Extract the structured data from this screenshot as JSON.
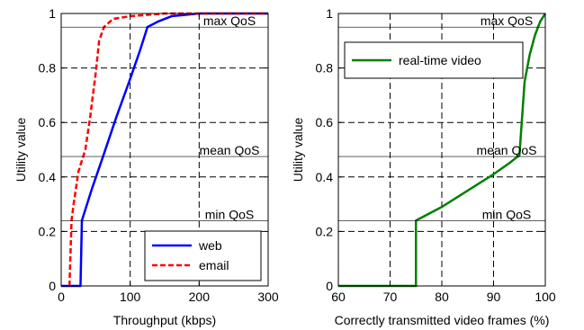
{
  "chart_data": [
    {
      "type": "line",
      "xlabel": "Throughput (kbps)",
      "ylabel": "Utility value",
      "xlim": [
        0,
        300
      ],
      "ylim": [
        0,
        1
      ],
      "xticks": [
        "0",
        "100",
        "200",
        "300"
      ],
      "yticks": [
        "0",
        "0.2",
        "0.4",
        "0.6",
        "0.8",
        "1"
      ],
      "grid": true,
      "legend_position": "bottom-right",
      "annotations": [
        {
          "label": "max QoS",
          "y": 0.95
        },
        {
          "label": "mean QoS",
          "y": 0.475
        },
        {
          "label": "min QoS",
          "y": 0.24
        }
      ],
      "series": [
        {
          "name": "web",
          "color": "#0000ff",
          "dash": "solid",
          "points": [
            [
              0,
              0
            ],
            [
              28,
              0
            ],
            [
              30,
              0.24
            ],
            [
              45,
              0.36
            ],
            [
              60,
              0.47
            ],
            [
              80,
              0.62
            ],
            [
              100,
              0.76
            ],
            [
              115,
              0.87
            ],
            [
              125,
              0.95
            ],
            [
              140,
              0.97
            ],
            [
              160,
              0.99
            ],
            [
              200,
              1.0
            ],
            [
              300,
              1.0
            ]
          ]
        },
        {
          "name": "email",
          "color": "#ff0000",
          "dash": "dashed",
          "points": [
            [
              12,
              0
            ],
            [
              15,
              0.24
            ],
            [
              18,
              0.3
            ],
            [
              25,
              0.42
            ],
            [
              35,
              0.5
            ],
            [
              42,
              0.62
            ],
            [
              50,
              0.78
            ],
            [
              55,
              0.9
            ],
            [
              62,
              0.95
            ],
            [
              75,
              0.98
            ],
            [
              100,
              0.99
            ],
            [
              150,
              1.0
            ],
            [
              300,
              1.0
            ]
          ]
        }
      ]
    },
    {
      "type": "line",
      "xlabel": "Correctly transmitted video frames (%)",
      "ylabel": "Utility value",
      "xlim": [
        60,
        100
      ],
      "ylim": [
        0,
        1
      ],
      "xticks": [
        "60",
        "70",
        "80",
        "90",
        "100"
      ],
      "yticks": [
        "0",
        "0.2",
        "0.4",
        "0.6",
        "0.8",
        "1"
      ],
      "grid": true,
      "legend_position": "top-left",
      "annotations": [
        {
          "label": "max QoS",
          "y": 0.95
        },
        {
          "label": "mean QoS",
          "y": 0.475
        },
        {
          "label": "min QoS",
          "y": 0.24
        }
      ],
      "series": [
        {
          "name": "real-time video",
          "color": "#008000",
          "dash": "solid",
          "points": [
            [
              60,
              0
            ],
            [
              75,
              0
            ],
            [
              75,
              0.24
            ],
            [
              80,
              0.29
            ],
            [
              85,
              0.35
            ],
            [
              90,
              0.41
            ],
            [
              93,
              0.45
            ],
            [
              95,
              0.48
            ],
            [
              96,
              0.75
            ],
            [
              97,
              0.85
            ],
            [
              98,
              0.92
            ],
            [
              99,
              0.97
            ],
            [
              100,
              1.0
            ]
          ]
        }
      ]
    }
  ]
}
